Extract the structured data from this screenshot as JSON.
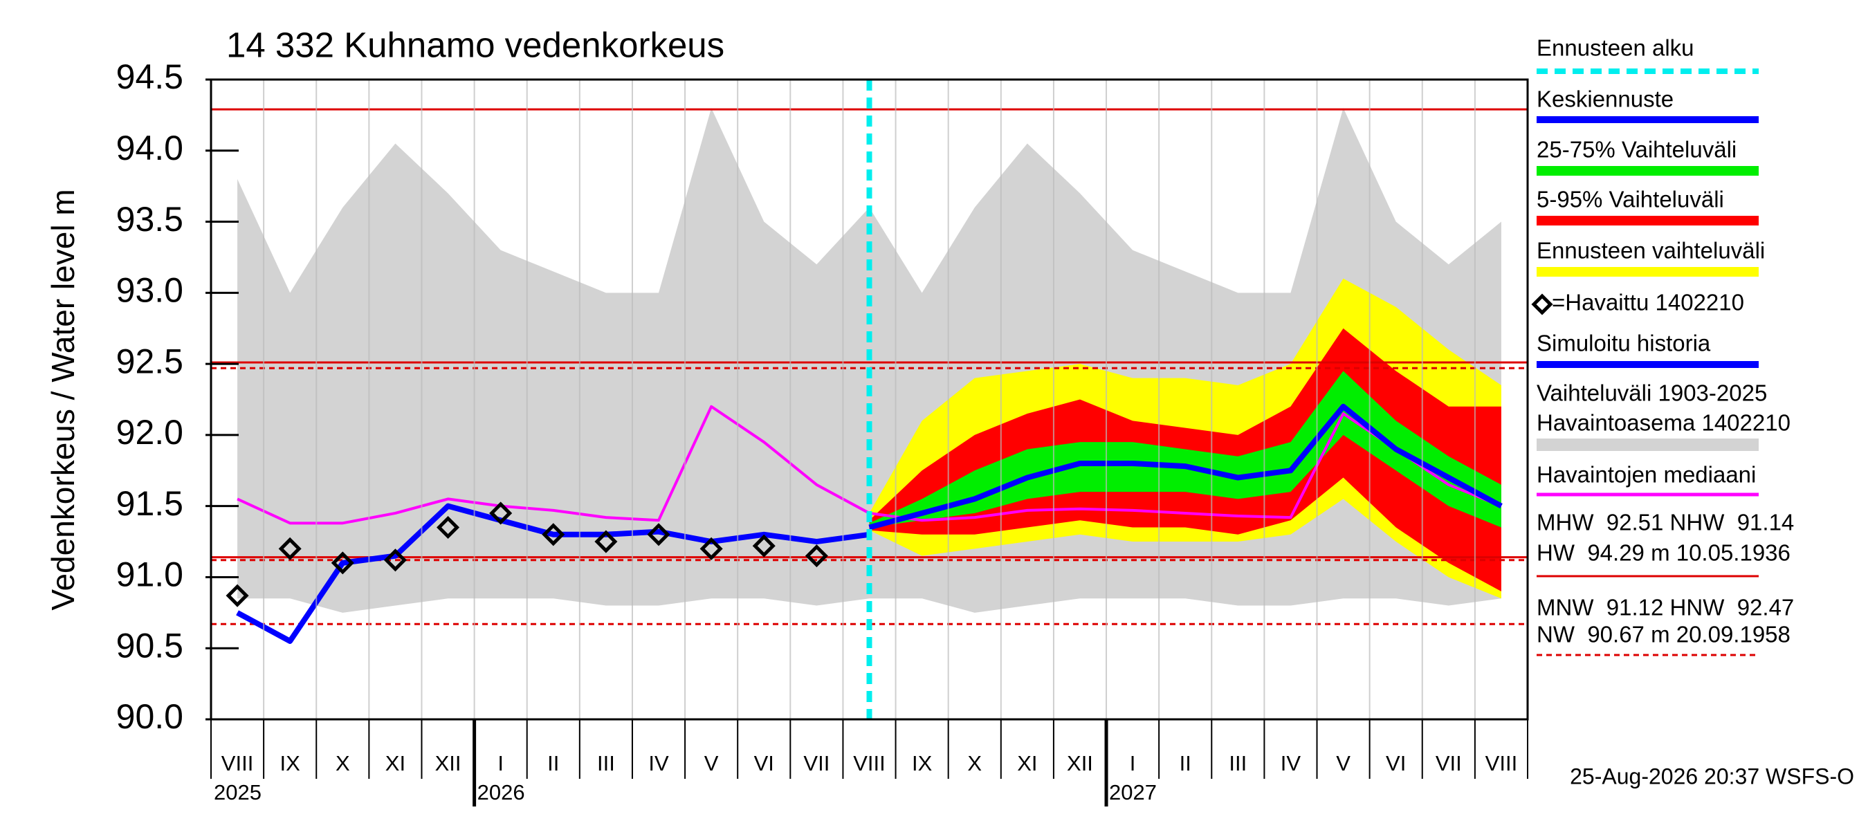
{
  "chart_data": {
    "type": "line",
    "title": "14 332 Kuhnamo vedenkorkeus",
    "y_label": "Vedenkorkeus / Water level   m",
    "footer": "25-Aug-2026 20:37 WSFS-O",
    "categories": [
      "VIII",
      "IX",
      "X",
      "XI",
      "XII",
      "I",
      "II",
      "III",
      "IV",
      "V",
      "VI",
      "VII",
      "VIII",
      "IX",
      "X",
      "XI",
      "XII",
      "I",
      "II",
      "III",
      "IV",
      "V",
      "VI",
      "VII",
      "VIII"
    ],
    "category_years": [
      "2025",
      null,
      null,
      null,
      null,
      "2026",
      null,
      null,
      null,
      null,
      null,
      null,
      null,
      null,
      null,
      null,
      null,
      "2027",
      null,
      null,
      null,
      null,
      null,
      null,
      null
    ],
    "ylim": [
      90,
      94.5
    ],
    "yticks": [
      {
        "value": 90,
        "label": "90.0"
      },
      {
        "value": 90.5,
        "label": "90.5"
      },
      {
        "value": 91,
        "label": "91.0"
      },
      {
        "value": 91.5,
        "label": "91.5"
      },
      {
        "value": 92,
        "label": "92.0"
      },
      {
        "value": 92.5,
        "label": "92.5"
      },
      {
        "value": 93,
        "label": "93.0"
      },
      {
        "value": 93.5,
        "label": "93.5"
      },
      {
        "value": 94,
        "label": "94.0"
      },
      {
        "value": 94.5,
        "label": "94.5"
      }
    ],
    "grid": "x",
    "forecast_start": {
      "name": "Ennusteen alku",
      "color": "#00eeee"
    },
    "bands": [
      {
        "name_lines": [
          "Vaihteluväli 1903-2025",
          "Havaintoasema 1402210"
        ],
        "color": "#d3d3d3",
        "low": [
          90.85,
          90.85,
          90.75,
          90.8,
          90.85,
          90.85,
          90.85,
          90.8,
          90.8,
          90.85,
          90.85,
          90.8,
          90.85,
          90.85,
          90.75,
          90.8,
          90.85,
          90.85,
          90.85,
          90.8,
          90.8,
          90.85,
          90.85,
          90.8,
          90.85
        ],
        "high": [
          93.8,
          93.0,
          93.6,
          94.05,
          93.7,
          93.3,
          93.15,
          93.0,
          93.0,
          94.3,
          93.5,
          93.2,
          93.6,
          93.0,
          93.6,
          94.05,
          93.7,
          93.3,
          93.15,
          93.0,
          93.0,
          94.3,
          93.5,
          93.2,
          93.5
        ]
      },
      {
        "name": "Ennusteen vaihteluväli",
        "color": "#ffff00",
        "low": [
          null,
          null,
          null,
          null,
          null,
          null,
          null,
          null,
          null,
          null,
          null,
          null,
          91.33,
          91.15,
          91.2,
          91.25,
          91.3,
          91.25,
          91.25,
          91.25,
          91.3,
          91.55,
          91.25,
          91.0,
          90.85
        ],
        "high": [
          null,
          null,
          null,
          null,
          null,
          null,
          null,
          null,
          null,
          null,
          null,
          null,
          91.45,
          92.1,
          92.4,
          92.45,
          92.5,
          92.4,
          92.4,
          92.35,
          92.5,
          93.1,
          92.9,
          92.6,
          92.35
        ]
      },
      {
        "name": "5-95% Vaihteluväli",
        "color": "#ff0000",
        "low": [
          null,
          null,
          null,
          null,
          null,
          null,
          null,
          null,
          null,
          null,
          null,
          null,
          91.33,
          91.3,
          91.3,
          91.35,
          91.4,
          91.35,
          91.35,
          91.3,
          91.4,
          91.7,
          91.35,
          91.1,
          90.9
        ],
        "high": [
          null,
          null,
          null,
          null,
          null,
          null,
          null,
          null,
          null,
          null,
          null,
          null,
          91.4,
          91.75,
          92.0,
          92.15,
          92.25,
          92.1,
          92.05,
          92.0,
          92.2,
          92.75,
          92.45,
          92.2,
          92.2
        ]
      },
      {
        "name": "25-75% Vaihteluväli",
        "color": "#00ee00",
        "low": [
          null,
          null,
          null,
          null,
          null,
          null,
          null,
          null,
          null,
          null,
          null,
          null,
          91.35,
          91.4,
          91.45,
          91.55,
          91.6,
          91.6,
          91.6,
          91.55,
          91.6,
          92.0,
          91.75,
          91.5,
          91.35
        ],
        "high": [
          null,
          null,
          null,
          null,
          null,
          null,
          null,
          null,
          null,
          null,
          null,
          null,
          91.38,
          91.55,
          91.75,
          91.9,
          91.95,
          91.95,
          91.9,
          91.85,
          91.95,
          92.45,
          92.1,
          91.85,
          91.65
        ]
      }
    ],
    "reference_lines": [
      {
        "value": 94.29,
        "color": "#dd0000",
        "dashed": false
      },
      {
        "value": 92.51,
        "color": "#dd0000",
        "dashed": false
      },
      {
        "value": 92.47,
        "color": "#dd0000",
        "dashed": true
      },
      {
        "value": 91.14,
        "color": "#dd0000",
        "dashed": false
      },
      {
        "value": 91.12,
        "color": "#dd0000",
        "dashed": true
      },
      {
        "value": 90.67,
        "color": "#dd0000",
        "dashed": true
      }
    ],
    "series": [
      {
        "name": "Havaintojen mediaani",
        "color": "#ff00ff",
        "style": "line",
        "values": [
          91.55,
          91.38,
          91.38,
          91.45,
          91.55,
          91.5,
          91.47,
          91.42,
          91.4,
          92.2,
          91.95,
          91.65,
          91.45,
          91.4,
          91.42,
          91.47,
          91.48,
          91.47,
          91.45,
          91.43,
          91.42,
          92.15,
          91.9,
          91.65,
          91.5
        ]
      },
      {
        "name": "Simuloitu historia",
        "color": "#0000ff",
        "style": "line",
        "values": [
          90.75,
          90.55,
          91.1,
          91.15,
          91.5,
          91.4,
          91.3,
          91.3,
          91.32,
          91.25,
          91.3,
          91.25,
          91.3,
          null,
          null,
          null,
          null,
          null,
          null,
          null,
          null,
          null,
          null,
          null,
          null
        ]
      },
      {
        "name": "=Havaittu 1402210",
        "color": "#000000",
        "style": "diamond",
        "values": [
          90.87,
          91.2,
          91.1,
          91.12,
          91.35,
          91.45,
          91.3,
          91.25,
          91.3,
          91.2,
          91.22,
          91.15,
          null,
          null,
          null,
          null,
          null,
          null,
          null,
          null,
          null,
          null,
          null,
          null,
          null
        ]
      },
      {
        "name": "Keskiennuste",
        "color": "#0000ff",
        "style": "line",
        "values": [
          null,
          null,
          null,
          null,
          null,
          null,
          null,
          null,
          null,
          null,
          null,
          null,
          91.35,
          91.45,
          91.55,
          91.7,
          91.8,
          91.8,
          91.78,
          91.7,
          91.75,
          92.2,
          91.9,
          91.7,
          91.5
        ]
      }
    ],
    "stats": [
      "MHW  92.51 NHW  91.14",
      "HW  94.29 m 10.05.1936",
      "MNW  91.12 HNW  92.47",
      "NW  90.67 m 20.09.1958"
    ]
  }
}
